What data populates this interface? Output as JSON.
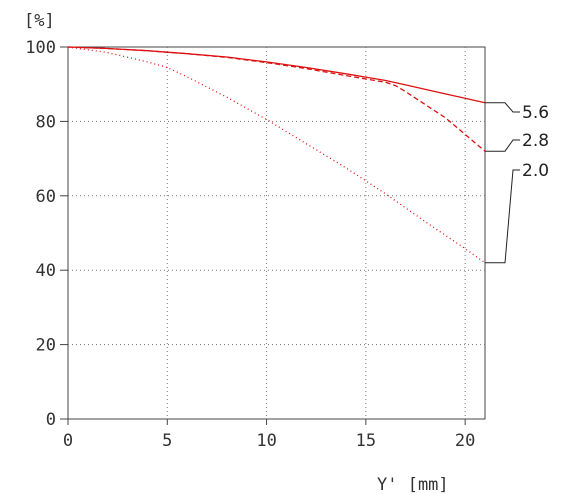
{
  "chart_data": {
    "type": "line",
    "title": "",
    "xlabel": "Y' [mm]",
    "ylabel": "[%]",
    "xlim": [
      0,
      21
    ],
    "ylim": [
      0,
      100
    ],
    "x_ticks": [
      "0",
      "5",
      "10",
      "15",
      "20"
    ],
    "y_ticks": [
      "0",
      "20",
      "40",
      "60",
      "80",
      "100"
    ],
    "grid": true,
    "legend_position": "right",
    "series": [
      {
        "name": "5.6",
        "style": "solid",
        "color": "#dd1111",
        "x": [
          0,
          2,
          4,
          6,
          8,
          10,
          12,
          14,
          16,
          17,
          18,
          19,
          20,
          21
        ],
        "y": [
          100,
          99.6,
          99.0,
          98.2,
          97.3,
          96.0,
          94.5,
          92.8,
          91.0,
          89.8,
          88.6,
          87.4,
          86.2,
          85.0
        ]
      },
      {
        "name": "2.8",
        "style": "dashed",
        "color": "#dd1111",
        "x": [
          0,
          2,
          4,
          6,
          8,
          10,
          12,
          14,
          16,
          16.5,
          17,
          18,
          19,
          20,
          21
        ],
        "y": [
          100,
          99.6,
          99.0,
          98.2,
          97.2,
          95.8,
          94.2,
          92.3,
          90.5,
          89.6,
          88.0,
          84.5,
          81.0,
          76.5,
          72.0
        ]
      },
      {
        "name": "2.0",
        "style": "dotted",
        "color": "#dd1111",
        "x": [
          0,
          2,
          4,
          5,
          6,
          8,
          10,
          12,
          14,
          16,
          18,
          20,
          21
        ],
        "y": [
          100,
          98.5,
          96.0,
          94.5,
          92.0,
          86.5,
          80.5,
          74.0,
          67.5,
          60.5,
          53.0,
          45.8,
          42.0
        ]
      }
    ]
  }
}
